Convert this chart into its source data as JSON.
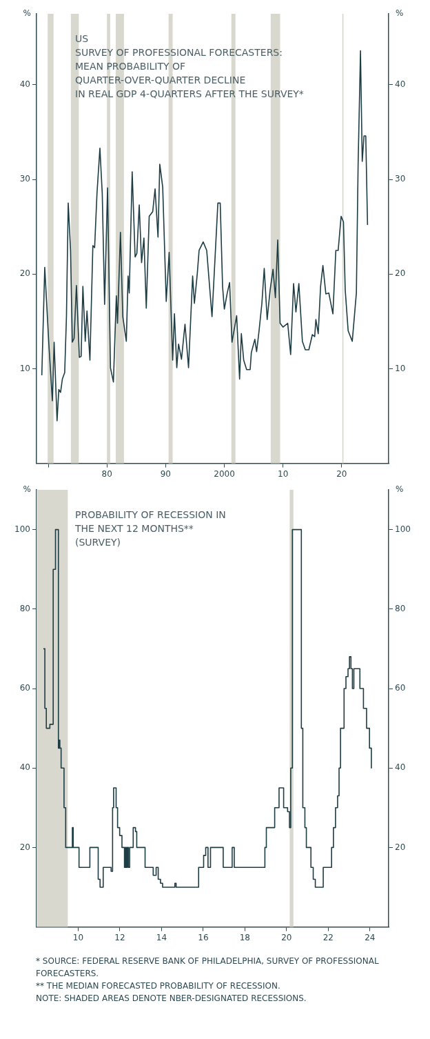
{
  "chart_data": [
    {
      "type": "line",
      "title": "US\nSURVEY OF PROFESSIONAL FORECASTERS:\nMEAN PROBABILITY OF\nQUARTER-OVER-QUARTER DECLINE\nIN REAL GDP 4-QUARTERS AFTER THE SURVEY*",
      "ylabel": "%",
      "y2label": "%",
      "xlim": [
        1968,
        2028
      ],
      "xticks": [
        {
          "value": 1970,
          "label": null
        },
        {
          "value": 1980,
          "label": "80"
        },
        {
          "value": 1990,
          "label": "90"
        },
        {
          "value": 2000,
          "label": "2000"
        },
        {
          "value": 2010,
          "label": "10"
        },
        {
          "value": 2020,
          "label": "20"
        }
      ],
      "ylim": [
        0,
        47.5
      ],
      "yticks": [
        10,
        20,
        30,
        40
      ],
      "y2lim": [
        0,
        47.5
      ],
      "y2ticks": [
        10,
        20,
        30,
        40
      ],
      "series": [
        {
          "color": "#1d3c44",
          "x": [
            1968.9,
            1969.4,
            1970.1,
            1970.7,
            1971.0,
            1971.5,
            1971.8,
            1972.1,
            1972.4,
            1972.8,
            1973.1,
            1973.4,
            1973.8,
            1974.1,
            1974.4,
            1974.8,
            1975.3,
            1975.6,
            1975.9,
            1976.3,
            1976.6,
            1977.1,
            1977.6,
            1977.9,
            1978.3,
            1978.8,
            1979.2,
            1979.6,
            1980.1,
            1980.6,
            1981.1,
            1981.6,
            1981.8,
            1982.3,
            1982.7,
            1983.3,
            1983.6,
            1983.8,
            1984.3,
            1984.8,
            1985.1,
            1985.5,
            1985.9,
            1986.3,
            1986.7,
            1987.2,
            1987.8,
            1988.2,
            1988.7,
            1989.0,
            1989.5,
            1990.1,
            1990.6,
            1991.2,
            1991.5,
            1991.9,
            1992.2,
            1992.7,
            1993.3,
            1993.9,
            1994.6,
            1994.9,
            1995.4,
            1995.7,
            1996.4,
            1997.0,
            1997.9,
            1998.9,
            1999.3,
            1999.7,
            2000.0,
            2000.5,
            2000.9,
            2001.3,
            2002.1,
            2002.6,
            2002.9,
            2003.3,
            2003.8,
            2004.4,
            2004.6,
            2005.2,
            2005.5,
            2005.9,
            2006.4,
            2006.8,
            2007.3,
            2007.8,
            2008.3,
            2008.7,
            2009.1,
            2009.5,
            2010.0,
            2010.8,
            2011.3,
            2011.8,
            2012.2,
            2012.7,
            2013.3,
            2013.8,
            2014.4,
            2015.0,
            2015.4,
            2015.6,
            2016.0,
            2016.4,
            2016.8,
            2017.3,
            2017.8,
            2018.5,
            2019.0,
            2019.4,
            2019.9,
            2020.3,
            2020.6,
            2021.1,
            2021.8,
            2022.5,
            2022.8,
            2023.2,
            2023.5,
            2023.8,
            2024.1,
            2024.4
          ],
          "values": [
            9.3,
            20.7,
            12.6,
            6.6,
            12.8,
            4.5,
            7.8,
            7.5,
            8.9,
            9.6,
            15.5,
            27.5,
            22.5,
            12.8,
            13.2,
            18.8,
            11.2,
            11.3,
            18.7,
            12.9,
            16.1,
            10.9,
            23.0,
            22.8,
            28.5,
            33.3,
            28.5,
            16.8,
            29.1,
            10.1,
            8.6,
            17.7,
            14.8,
            24.4,
            15.5,
            12.9,
            19.8,
            18.0,
            30.8,
            21.8,
            22.2,
            27.3,
            21.2,
            23.8,
            16.4,
            26.1,
            26.6,
            29.0,
            23.9,
            31.6,
            29.2,
            17.1,
            22.3,
            10.9,
            15.8,
            10.1,
            12.6,
            11.0,
            14.7,
            10.1,
            19.8,
            16.9,
            20.1,
            22.5,
            23.4,
            22.5,
            15.5,
            27.5,
            27.5,
            18.7,
            16.3,
            18.0,
            19.1,
            12.8,
            15.6,
            8.9,
            13.7,
            10.9,
            9.9,
            9.9,
            11.7,
            13.1,
            11.8,
            13.9,
            16.9,
            20.6,
            15.2,
            18.3,
            20.5,
            17.5,
            23.6,
            14.8,
            14.4,
            14.8,
            11.5,
            19.0,
            16.0,
            19.0,
            12.9,
            12.0,
            12.0,
            13.6,
            13.4,
            15.2,
            13.7,
            18.7,
            20.9,
            17.9,
            18.0,
            15.8,
            22.5,
            22.5,
            26.1,
            25.5,
            18.3,
            14.0,
            12.9,
            18.0,
            31.7,
            43.6,
            31.9,
            34.6,
            34.6,
            25.2
          ]
        }
      ],
      "bands": [
        {
          "axis": "x",
          "from": 1969.9,
          "to": 1970.9,
          "color": "#d9d8ce"
        },
        {
          "axis": "x",
          "from": 1973.85,
          "to": 1975.2,
          "color": "#d9d8ce"
        },
        {
          "axis": "x",
          "from": 1980.0,
          "to": 1980.55,
          "color": "#d9d8ce"
        },
        {
          "axis": "x",
          "from": 1981.5,
          "to": 1982.9,
          "color": "#d9d8ce"
        },
        {
          "axis": "x",
          "from": 1990.5,
          "to": 1991.2,
          "color": "#d9d8ce"
        },
        {
          "axis": "x",
          "from": 2001.2,
          "to": 2001.9,
          "color": "#d9d8ce"
        },
        {
          "axis": "x",
          "from": 2007.9,
          "to": 2009.5,
          "color": "#d9d8ce"
        },
        {
          "axis": "x",
          "from": 2020.1,
          "to": 2020.3,
          "color": "#d9d8ce"
        }
      ],
      "annotations": [
        "* SOURCE: FEDERAL RESERVE BANK OF PHILADELPHIA, SURVEY OF PROFESSIONAL FORECASTERS."
      ]
    },
    {
      "type": "step",
      "title": "PROBABILITY OF RECESSION IN\nTHE NEXT 12 MONTHS**\n(SURVEY)",
      "ylabel": "%",
      "y2label": "%",
      "xlim": [
        2008,
        2024.9
      ],
      "xticks": [
        {
          "value": 2010,
          "label": "10"
        },
        {
          "value": 2012,
          "label": "12"
        },
        {
          "value": 2014,
          "label": "14"
        },
        {
          "value": 2016,
          "label": "16"
        },
        {
          "value": 2018,
          "label": "18"
        },
        {
          "value": 2020,
          "label": "20"
        },
        {
          "value": 2022,
          "label": "22"
        },
        {
          "value": 2024,
          "label": "24"
        }
      ],
      "ylim": [
        0,
        110
      ],
      "yticks": [
        20,
        40,
        60,
        80,
        100
      ],
      "y2lim": [
        0,
        110
      ],
      "y2ticks": [
        20,
        40,
        60,
        80,
        100
      ],
      "series": [
        {
          "color": "#1d3c44",
          "x": [
            2008.33,
            2008.4,
            2008.47,
            2008.64,
            2008.8,
            2008.91,
            2009.05,
            2009.08,
            2009.12,
            2009.18,
            2009.32,
            2009.4,
            2009.72,
            2009.76,
            2010.04,
            2010.56,
            2010.96,
            2011.05,
            2011.2,
            2011.58,
            2011.65,
            2011.7,
            2011.82,
            2011.89,
            2011.99,
            2012.1,
            2012.22,
            2012.27,
            2012.31,
            2012.36,
            2012.41,
            2012.47,
            2012.64,
            2012.75,
            2012.81,
            2013.21,
            2013.6,
            2013.74,
            2013.84,
            2013.95,
            2014.05,
            2014.64,
            2014.7,
            2015.78,
            2016.02,
            2016.12,
            2016.23,
            2016.35,
            2016.96,
            2017.39,
            2017.49,
            2018.96,
            2019.03,
            2019.43,
            2019.64,
            2019.86,
            2020.05,
            2020.14,
            2020.2,
            2020.28,
            2020.71,
            2020.78,
            2020.88,
            2020.95,
            2021.17,
            2021.28,
            2021.38,
            2021.76,
            2022.16,
            2022.25,
            2022.35,
            2022.45,
            2022.52,
            2022.59,
            2022.76,
            2022.85,
            2022.95,
            2023.02,
            2023.09,
            2023.16,
            2023.23,
            2023.52,
            2023.69,
            2023.84,
            2023.98,
            2024.07
          ],
          "values": [
            70,
            55,
            50,
            51,
            90,
            100,
            45,
            47,
            45,
            40,
            30,
            20,
            25,
            20,
            15,
            20,
            12,
            10,
            15,
            14,
            30,
            35,
            30,
            25,
            23,
            20,
            15,
            20,
            15,
            20,
            15,
            20,
            25,
            24,
            20,
            15,
            13,
            15,
            12,
            11,
            10,
            11,
            10,
            15,
            18,
            20,
            15,
            20,
            15,
            20,
            15,
            20,
            25,
            30,
            35,
            30,
            29,
            25,
            40,
            100,
            50,
            30,
            25,
            20,
            15,
            12,
            10,
            15,
            20,
            25,
            30,
            33,
            40,
            50,
            60,
            63,
            65,
            68,
            65,
            60,
            65,
            60,
            55,
            50,
            45,
            40
          ]
        }
      ],
      "bands": [
        {
          "axis": "x",
          "from": 2008,
          "to": 2009.5,
          "color": "#d9d8ce"
        },
        {
          "axis": "x",
          "from": 2020.15,
          "to": 2020.33,
          "color": "#d9d8ce"
        }
      ],
      "annotations": [
        "** THE MEDIAN FORECASTED PROBABILITY OF RECESSION.",
        "NOTE: SHADED AREAS DENOTE NBER-DESIGNATED RECESSIONS."
      ]
    }
  ]
}
